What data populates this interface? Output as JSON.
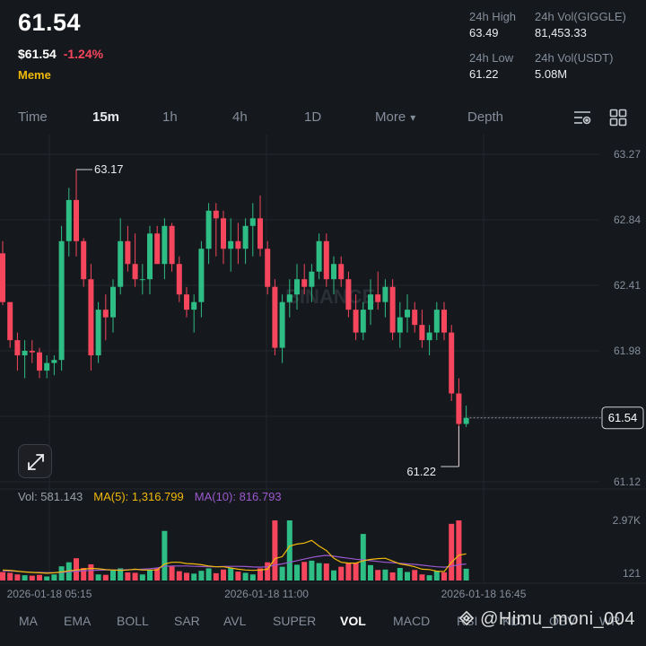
{
  "header": {
    "price": "61.54",
    "usd_price": "$61.54",
    "change": "-1.24%",
    "tag": "Meme"
  },
  "stats": {
    "high_label": "24h High",
    "high_value": "63.49",
    "vol_base_label": "24h Vol(GIGGLE)",
    "vol_base_value": "81,453.33",
    "low_label": "24h Low",
    "low_value": "61.22",
    "vol_quote_label": "24h Vol(USDT)",
    "vol_quote_value": "5.08M"
  },
  "tabs": [
    {
      "label": "Time",
      "active": false
    },
    {
      "label": "15m",
      "active": true
    },
    {
      "label": "1h",
      "active": false
    },
    {
      "label": "4h",
      "active": false
    },
    {
      "label": "1D",
      "active": false
    },
    {
      "label": "More",
      "active": false
    },
    {
      "label": "Depth",
      "active": false
    }
  ],
  "icons": {
    "settings": "chart-settings-icon",
    "layout": "grid-layout-icon",
    "expand": "expand-icon"
  },
  "chart_data": {
    "type": "candlestick",
    "y_ticks": [
      "63.27",
      "62.84",
      "62.41",
      "61.98",
      "61.55",
      "61.12"
    ],
    "y_tick_values": [
      63.27,
      62.84,
      62.41,
      61.98,
      61.55,
      61.12
    ],
    "ylim": [
      61.12,
      63.27
    ],
    "x_ticks": [
      "2026-01-18 05:15",
      "2026-01-18 11:00",
      "2026-01-18 16:45"
    ],
    "x_tick_index": [
      2,
      26,
      50
    ],
    "current_price": "61.54",
    "annotations": [
      {
        "text": "63.17",
        "index": 10,
        "value": 63.17
      },
      {
        "text": "61.22",
        "index": 62,
        "value": 61.22
      }
    ],
    "watermark": "BINANCE",
    "volume_label": "Vol: 581.143",
    "ma5_label": "MA(5): 1,316.799",
    "ma10_label": "MA(10): 816.793",
    "volume_axis": [
      "2.97K",
      "121"
    ],
    "volume_max": 2970,
    "volume_min": 121,
    "colors": {
      "up": "#2ebd85",
      "down": "#f6465d",
      "ma5": "#f0b90b",
      "ma10": "#9b59d0",
      "bg": "#15181c",
      "grid": "#22262c"
    },
    "candles": [
      [
        62.62,
        62.7,
        62.28,
        62.3
      ],
      [
        62.3,
        62.3,
        62.0,
        62.05
      ],
      [
        62.05,
        62.1,
        61.85,
        61.95
      ],
      [
        61.95,
        62.05,
        61.8,
        61.98
      ],
      [
        61.98,
        62.05,
        61.9,
        61.97
      ],
      [
        61.97,
        62.0,
        61.8,
        61.85
      ],
      [
        61.85,
        61.95,
        61.8,
        61.9
      ],
      [
        61.9,
        61.95,
        61.82,
        61.92
      ],
      [
        61.92,
        62.8,
        61.85,
        62.7
      ],
      [
        62.7,
        63.05,
        62.6,
        62.97
      ],
      [
        62.97,
        63.17,
        62.6,
        62.7
      ],
      [
        62.7,
        62.72,
        62.4,
        62.45
      ],
      [
        62.45,
        62.55,
        61.85,
        61.95
      ],
      [
        61.95,
        62.3,
        61.9,
        62.25
      ],
      [
        62.25,
        62.35,
        62.05,
        62.2
      ],
      [
        62.2,
        62.45,
        62.1,
        62.4
      ],
      [
        62.4,
        62.85,
        62.35,
        62.7
      ],
      [
        62.7,
        62.8,
        62.5,
        62.55
      ],
      [
        62.55,
        62.75,
        62.4,
        62.45
      ],
      [
        62.45,
        62.55,
        62.35,
        62.45
      ],
      [
        62.45,
        62.8,
        62.35,
        62.75
      ],
      [
        62.75,
        62.8,
        62.55,
        62.55
      ],
      [
        62.55,
        62.85,
        62.45,
        62.8
      ],
      [
        62.8,
        62.82,
        62.5,
        62.55
      ],
      [
        62.55,
        62.6,
        62.3,
        62.35
      ],
      [
        62.35,
        62.4,
        62.2,
        62.25
      ],
      [
        62.25,
        62.35,
        62.1,
        62.3
      ],
      [
        62.3,
        62.7,
        62.2,
        62.65
      ],
      [
        62.65,
        62.95,
        62.55,
        62.9
      ],
      [
        62.9,
        62.95,
        62.6,
        62.85
      ],
      [
        62.85,
        62.9,
        62.55,
        62.65
      ],
      [
        62.65,
        62.85,
        62.5,
        62.7
      ],
      [
        62.7,
        62.82,
        62.55,
        62.65
      ],
      [
        62.65,
        62.85,
        62.55,
        62.8
      ],
      [
        62.8,
        62.95,
        62.6,
        62.85
      ],
      [
        62.85,
        63.0,
        62.6,
        62.65
      ],
      [
        62.65,
        62.7,
        62.35,
        62.4
      ],
      [
        62.4,
        62.45,
        61.95,
        62.0
      ],
      [
        62.0,
        62.35,
        61.9,
        62.3
      ],
      [
        62.3,
        62.45,
        62.2,
        62.35
      ],
      [
        62.35,
        62.55,
        62.25,
        62.45
      ],
      [
        62.45,
        62.55,
        62.35,
        62.4
      ],
      [
        62.4,
        62.55,
        62.3,
        62.5
      ],
      [
        62.5,
        62.75,
        62.45,
        62.7
      ],
      [
        62.7,
        62.75,
        62.4,
        62.45
      ],
      [
        62.45,
        62.6,
        62.35,
        62.55
      ],
      [
        62.55,
        62.6,
        62.4,
        62.45
      ],
      [
        62.45,
        62.5,
        62.2,
        62.25
      ],
      [
        62.25,
        62.35,
        62.05,
        62.1
      ],
      [
        62.1,
        62.3,
        62.05,
        62.25
      ],
      [
        62.25,
        62.45,
        62.15,
        62.35
      ],
      [
        62.35,
        62.5,
        62.25,
        62.3
      ],
      [
        62.3,
        62.45,
        62.2,
        62.4
      ],
      [
        62.4,
        62.45,
        62.05,
        62.1
      ],
      [
        62.1,
        62.3,
        62.0,
        62.2
      ],
      [
        62.2,
        62.35,
        62.1,
        62.25
      ],
      [
        62.25,
        62.3,
        62.1,
        62.15
      ],
      [
        62.15,
        62.25,
        62.0,
        62.05
      ],
      [
        62.05,
        62.15,
        61.95,
        62.1
      ],
      [
        62.1,
        62.3,
        62.05,
        62.25
      ],
      [
        62.25,
        62.3,
        62.05,
        62.1
      ],
      [
        62.1,
        62.15,
        61.65,
        61.7
      ],
      [
        61.7,
        61.8,
        61.22,
        61.5
      ],
      [
        61.5,
        61.62,
        61.48,
        61.54
      ]
    ],
    "volumes": [
      420,
      380,
      300,
      260,
      240,
      280,
      200,
      300,
      700,
      900,
      1100,
      620,
      800,
      300,
      280,
      500,
      600,
      400,
      380,
      300,
      520,
      600,
      2450,
      700,
      460,
      380,
      340,
      480,
      600,
      360,
      540,
      620,
      440,
      380,
      300,
      600,
      900,
      2970,
      680,
      2970,
      780,
      920,
      980,
      860,
      840,
      500,
      680,
      860,
      880,
      2300,
      760,
      520,
      540,
      400,
      620,
      420,
      520,
      300,
      260,
      480,
      400,
      2800,
      2970,
      581
    ],
    "ma5": [
      520,
      500,
      460,
      420,
      400,
      380,
      360,
      380,
      420,
      480,
      520,
      560,
      600,
      580,
      540,
      520,
      500,
      520,
      560,
      520,
      520,
      520,
      820,
      900,
      900,
      840,
      820,
      780,
      720,
      680,
      680,
      620,
      560,
      520,
      500,
      520,
      560,
      1080,
      1180,
      1700,
      1800,
      1850,
      1980,
      1700,
      1480,
      1100,
      900,
      860,
      860,
      980,
      1040,
      1080,
      1100,
      960,
      820,
      760,
      680,
      560,
      540,
      460,
      440,
      900,
      1250,
      1316.8
    ],
    "ma10": [
      480,
      470,
      450,
      430,
      410,
      400,
      390,
      390,
      400,
      430,
      460,
      480,
      500,
      510,
      520,
      520,
      520,
      530,
      540,
      560,
      580,
      620,
      700,
      720,
      720,
      720,
      700,
      690,
      680,
      680,
      690,
      700,
      700,
      690,
      670,
      660,
      680,
      760,
      820,
      900,
      980,
      1060,
      1140,
      1200,
      1240,
      1200,
      1150,
      1100,
      1050,
      1020,
      980,
      940,
      900,
      880,
      850,
      820,
      800,
      760,
      720,
      680,
      660,
      700,
      780,
      816.8
    ]
  },
  "indicators": [
    {
      "label": "MA",
      "active": false
    },
    {
      "label": "EMA",
      "active": false
    },
    {
      "label": "BOLL",
      "active": false
    },
    {
      "label": "SAR",
      "active": false
    },
    {
      "label": "AVL",
      "active": false
    },
    {
      "label": "SUPER",
      "active": false
    },
    {
      "label": "VOL",
      "active": true
    },
    {
      "label": "MACD",
      "active": false
    },
    {
      "label": "RSI",
      "active": false
    },
    {
      "label": "KDJ",
      "active": false
    },
    {
      "label": "OBV",
      "active": false
    },
    {
      "label": "WR",
      "active": false
    }
  ],
  "user_watermark": "@Himu_moni_004"
}
